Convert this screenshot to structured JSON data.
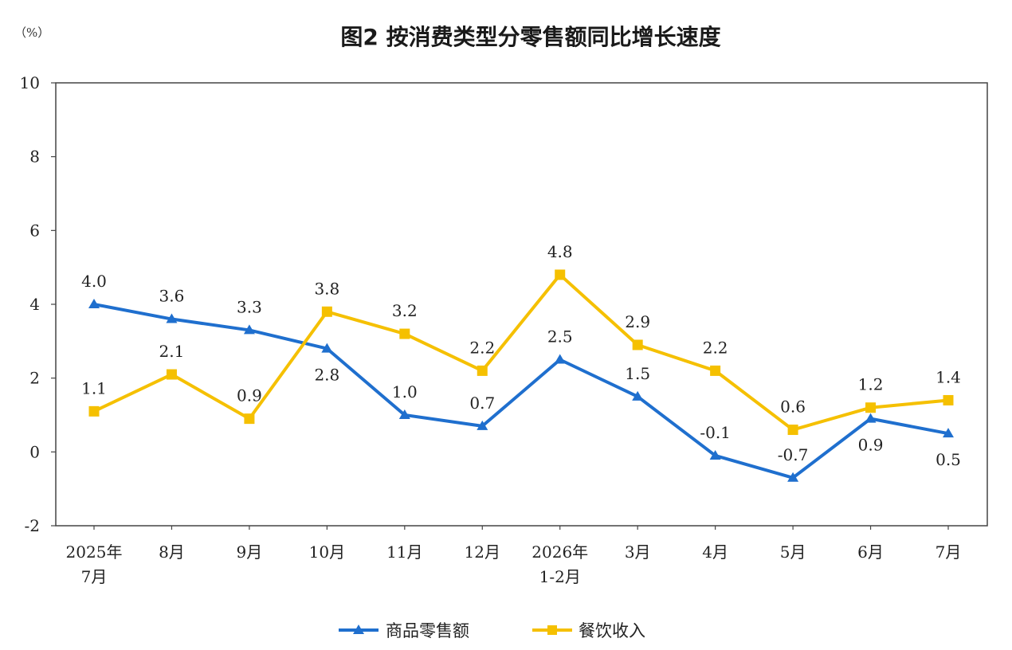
{
  "chart_data": {
    "type": "line",
    "title": "图2  按消费类型分零售额同比增长速度",
    "unit": "（%）",
    "ylim": [
      -2,
      10
    ],
    "yticks": [
      "-2",
      "0",
      "2",
      "4",
      "6",
      "8",
      "10"
    ],
    "categories": [
      [
        "2025年",
        "7月"
      ],
      [
        "8月"
      ],
      [
        "9月"
      ],
      [
        "10月"
      ],
      [
        "11月"
      ],
      [
        "12月"
      ],
      [
        "2026年",
        "1-2月"
      ],
      [
        "3月"
      ],
      [
        "4月"
      ],
      [
        "5月"
      ],
      [
        "6月"
      ],
      [
        "7月"
      ]
    ],
    "series": [
      {
        "name": "商品零售额",
        "color": "#1f6fce",
        "marker": "triangle",
        "values": [
          4.0,
          3.6,
          3.3,
          2.8,
          1.0,
          0.7,
          2.5,
          1.5,
          -0.1,
          -0.7,
          0.9,
          0.5
        ],
        "labels": [
          "4.0",
          "3.6",
          "3.3",
          "2.8",
          "1.0",
          "0.7",
          "2.5",
          "1.5",
          "-0.1",
          "-0.7",
          "0.9",
          "0.5"
        ],
        "label_pos": [
          "above",
          "above",
          "above",
          "below",
          "above",
          "above",
          "above",
          "above",
          "above",
          "above",
          "below",
          "below"
        ]
      },
      {
        "name": "餐饮收入",
        "color": "#f5c000",
        "marker": "square",
        "values": [
          1.1,
          2.1,
          0.9,
          3.8,
          3.2,
          2.2,
          4.8,
          2.9,
          2.2,
          0.6,
          1.2,
          1.4
        ],
        "labels": [
          "1.1",
          "2.1",
          "0.9",
          "3.8",
          "3.2",
          "2.2",
          "4.8",
          "2.9",
          "2.2",
          "0.6",
          "1.2",
          "1.4"
        ],
        "label_pos": [
          "above",
          "above",
          "above",
          "above",
          "above",
          "above",
          "above",
          "above",
          "above",
          "above",
          "above",
          "above"
        ]
      }
    ],
    "grid": false,
    "legend_position": "bottom-center"
  }
}
